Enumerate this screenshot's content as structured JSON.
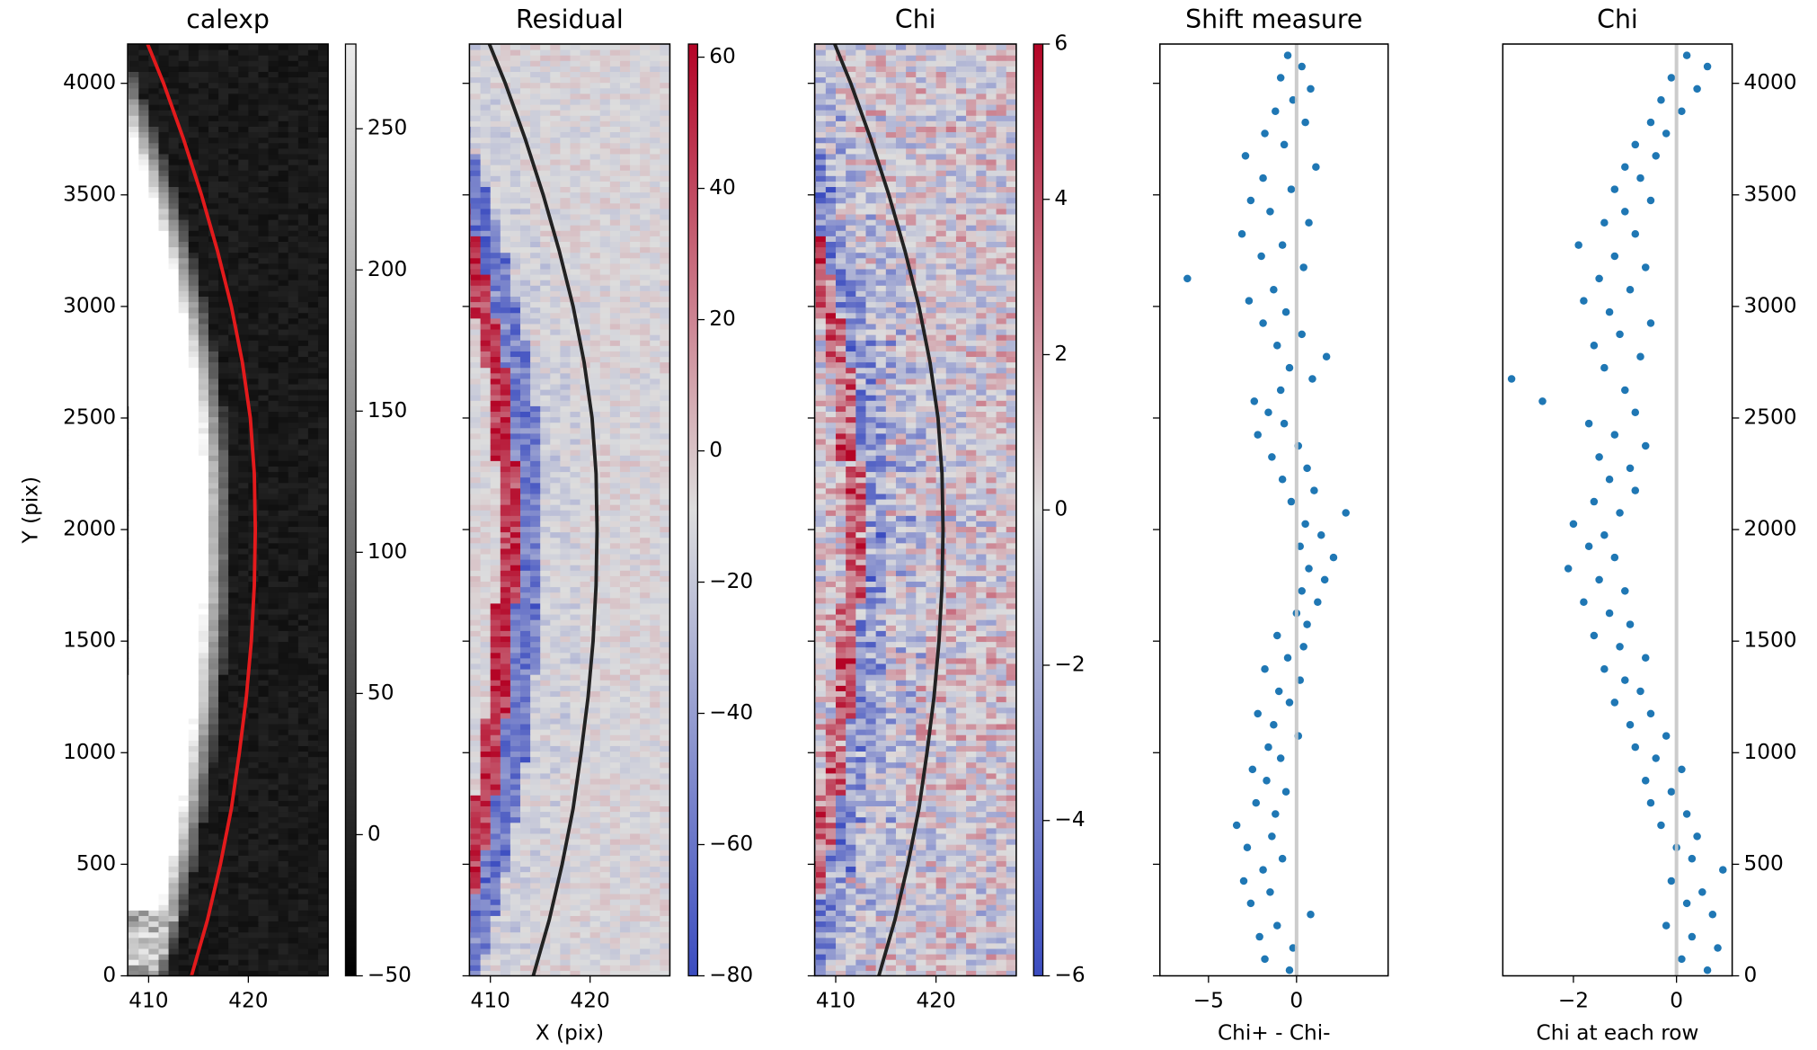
{
  "chart_data": [
    {
      "type": "image",
      "title": "calexp",
      "ylabel": "Y (pix)",
      "cmap": "gray",
      "xlim": [
        407.9,
        428
      ],
      "ylim": [
        0,
        4176
      ],
      "xticks": [
        410,
        420
      ],
      "yticks": [
        0,
        500,
        1000,
        1500,
        2000,
        2500,
        3000,
        3500,
        4000
      ],
      "ytick_label_side": "left",
      "curve": {
        "color": "#e31a1c",
        "x": [
          414.3,
          415.9,
          417.2,
          418.3,
          419.1,
          419.8,
          420.3,
          420.6,
          420.7,
          420.6,
          420.2,
          419.4,
          418.3,
          416.9,
          415.3,
          413.5,
          411.5,
          409.9
        ],
        "y": [
          0,
          250,
          500,
          750,
          1000,
          1250,
          1500,
          1750,
          2000,
          2250,
          2500,
          2750,
          3000,
          3250,
          3500,
          3750,
          4000,
          4176
        ]
      },
      "colorbar": {
        "lim": [
          -50,
          280
        ],
        "ticks": [
          {
            "value": -50,
            "label": "−50"
          },
          0,
          50,
          100,
          150,
          200,
          250
        ]
      }
    },
    {
      "type": "image",
      "title": "Residual",
      "xlabel": "X (pix)",
      "cmap": "coolwarm",
      "xlim": [
        407.9,
        428
      ],
      "ylim": [
        0,
        4176
      ],
      "xticks": [
        410,
        420
      ],
      "yticks": [
        0,
        500,
        1000,
        1500,
        2000,
        2500,
        3000,
        3500,
        4000
      ],
      "ytick_label_side": "none",
      "curve": {
        "color": "#222222",
        "x": [
          414.3,
          415.9,
          417.2,
          418.3,
          419.1,
          419.8,
          420.3,
          420.6,
          420.7,
          420.6,
          420.2,
          419.4,
          418.3,
          416.9,
          415.3,
          413.5,
          411.5,
          409.9
        ],
        "y": [
          0,
          250,
          500,
          750,
          1000,
          1250,
          1500,
          1750,
          2000,
          2250,
          2500,
          2750,
          3000,
          3250,
          3500,
          3750,
          4000,
          4176
        ]
      },
      "colorbar": {
        "lim": [
          -80,
          62
        ],
        "ticks": [
          {
            "value": -80,
            "label": "−80"
          },
          {
            "value": -60,
            "label": "−60"
          },
          {
            "value": -40,
            "label": "−40"
          },
          {
            "value": -20,
            "label": "−20"
          },
          0,
          20,
          40,
          60
        ]
      }
    },
    {
      "type": "image",
      "title": "Chi",
      "cmap": "coolwarm",
      "xlim": [
        407.9,
        428
      ],
      "ylim": [
        0,
        4176
      ],
      "xticks": [
        410,
        420
      ],
      "yticks": [
        0,
        500,
        1000,
        1500,
        2000,
        2500,
        3000,
        3500,
        4000
      ],
      "ytick_label_side": "none",
      "curve": {
        "color": "#222222",
        "x": [
          414.3,
          415.9,
          417.2,
          418.3,
          419.1,
          419.8,
          420.3,
          420.6,
          420.7,
          420.6,
          420.2,
          419.4,
          418.3,
          416.9,
          415.3,
          413.5,
          411.5,
          409.9
        ],
        "y": [
          0,
          250,
          500,
          750,
          1000,
          1250,
          1500,
          1750,
          2000,
          2250,
          2500,
          2750,
          3000,
          3250,
          3500,
          3750,
          4000,
          4176
        ]
      },
      "colorbar": {
        "lim": [
          -6,
          6
        ],
        "ticks": [
          {
            "value": -6,
            "label": "−6"
          },
          {
            "value": -4,
            "label": "−4"
          },
          {
            "value": -2,
            "label": "−2"
          },
          0,
          2,
          4,
          6
        ]
      }
    },
    {
      "type": "scatter",
      "title": "Shift measure",
      "xlabel": "Chi+ - Chi-",
      "color": "#1f77b4",
      "xlim": [
        -7.76,
        5.2
      ],
      "ylim": [
        0,
        4176
      ],
      "xticks": [
        {
          "value": -5,
          "label": "−5"
        },
        0
      ],
      "yticks": [
        0,
        500,
        1000,
        1500,
        2000,
        2500,
        3000,
        3500,
        4000
      ],
      "ytick_label_side": "none",
      "vline": 0,
      "vline_color": "#cccccc",
      "x": [
        -0.4,
        -1.8,
        -0.2,
        -2.1,
        -1.1,
        0.8,
        -2.6,
        -1.5,
        -3.0,
        -1.9,
        -0.8,
        -2.8,
        -1.4,
        -3.4,
        -1.2,
        -2.3,
        -0.6,
        -1.7,
        -2.5,
        -0.9,
        -1.6,
        0.1,
        -1.3,
        -2.2,
        -0.4,
        -1.0,
        0.2,
        -1.8,
        -0.5,
        0.4,
        -1.1,
        0.6,
        0.0,
        1.2,
        0.3,
        1.6,
        0.7,
        2.1,
        0.2,
        1.4,
        0.5,
        2.8,
        -0.3,
        1.0,
        -0.8,
        0.6,
        -1.4,
        0.1,
        -2.2,
        -0.7,
        -1.6,
        -2.4,
        -0.9,
        0.9,
        -0.4,
        1.7,
        -1.1,
        0.3,
        -1.9,
        -0.6,
        -2.7,
        -1.3,
        -6.2,
        0.4,
        -2.0,
        -0.8,
        -3.1,
        0.7,
        -1.5,
        -2.6,
        -0.3,
        -1.9,
        1.1,
        -2.9,
        -0.7,
        -1.8,
        0.5,
        -1.2,
        -0.2,
        0.8,
        -0.9,
        0.3,
        -0.5
      ],
      "y": [
        25,
        75,
        125,
        175,
        225,
        275,
        325,
        375,
        425,
        475,
        525,
        575,
        625,
        675,
        725,
        775,
        825,
        875,
        925,
        975,
        1025,
        1075,
        1125,
        1175,
        1225,
        1275,
        1325,
        1375,
        1425,
        1475,
        1525,
        1575,
        1625,
        1675,
        1725,
        1775,
        1825,
        1875,
        1925,
        1975,
        2025,
        2075,
        2125,
        2175,
        2225,
        2275,
        2325,
        2375,
        2425,
        2475,
        2525,
        2575,
        2625,
        2675,
        2725,
        2775,
        2825,
        2875,
        2925,
        2975,
        3025,
        3075,
        3125,
        3175,
        3225,
        3275,
        3325,
        3375,
        3425,
        3475,
        3525,
        3575,
        3625,
        3675,
        3725,
        3775,
        3825,
        3875,
        3925,
        3975,
        4025,
        4075,
        4125
      ]
    },
    {
      "type": "scatter",
      "title": "Chi",
      "xlabel": "Chi at each row",
      "color": "#1f77b4",
      "xlim": [
        -3.37,
        1.08
      ],
      "ylim": [
        0,
        4176
      ],
      "xticks": [
        {
          "value": -2,
          "label": "−2"
        },
        0
      ],
      "yticks": [
        0,
        500,
        1000,
        1500,
        2000,
        2500,
        3000,
        3500,
        4000
      ],
      "ytick_label_side": "right",
      "vline": 0,
      "vline_color": "#cccccc",
      "x": [
        0.6,
        0.1,
        0.8,
        0.3,
        -0.2,
        0.7,
        0.2,
        0.5,
        -0.1,
        0.9,
        0.3,
        0.0,
        0.4,
        -0.3,
        0.2,
        -0.5,
        -0.1,
        -0.6,
        0.1,
        -0.4,
        -0.8,
        -0.2,
        -0.9,
        -0.5,
        -1.2,
        -0.7,
        -1.0,
        -1.4,
        -0.6,
        -1.1,
        -1.6,
        -0.9,
        -1.3,
        -1.8,
        -1.0,
        -1.5,
        -2.1,
        -1.2,
        -1.7,
        -1.4,
        -2.0,
        -1.1,
        -1.6,
        -0.8,
        -1.3,
        -0.9,
        -1.5,
        -0.6,
        -1.2,
        -1.7,
        -0.8,
        -2.6,
        -1.0,
        -3.2,
        -1.4,
        -0.7,
        -1.6,
        -1.1,
        -0.5,
        -1.3,
        -1.8,
        -0.9,
        -1.5,
        -0.6,
        -1.2,
        -1.9,
        -0.8,
        -1.4,
        -1.0,
        -0.5,
        -1.2,
        -0.7,
        -1.0,
        -0.4,
        -0.8,
        -0.2,
        -0.5,
        0.1,
        -0.3,
        0.4,
        -0.1,
        0.6,
        0.2
      ],
      "y": [
        25,
        75,
        125,
        175,
        225,
        275,
        325,
        375,
        425,
        475,
        525,
        575,
        625,
        675,
        725,
        775,
        825,
        875,
        925,
        975,
        1025,
        1075,
        1125,
        1175,
        1225,
        1275,
        1325,
        1375,
        1425,
        1475,
        1525,
        1575,
        1625,
        1675,
        1725,
        1775,
        1825,
        1875,
        1925,
        1975,
        2025,
        2075,
        2125,
        2175,
        2225,
        2275,
        2325,
        2375,
        2425,
        2475,
        2525,
        2575,
        2625,
        2675,
        2725,
        2775,
        2825,
        2875,
        2925,
        2975,
        3025,
        3075,
        3125,
        3175,
        3225,
        3275,
        3325,
        3375,
        3425,
        3475,
        3525,
        3575,
        3625,
        3675,
        3725,
        3775,
        3825,
        3875,
        3925,
        3975,
        4025,
        4075,
        4125
      ]
    }
  ]
}
